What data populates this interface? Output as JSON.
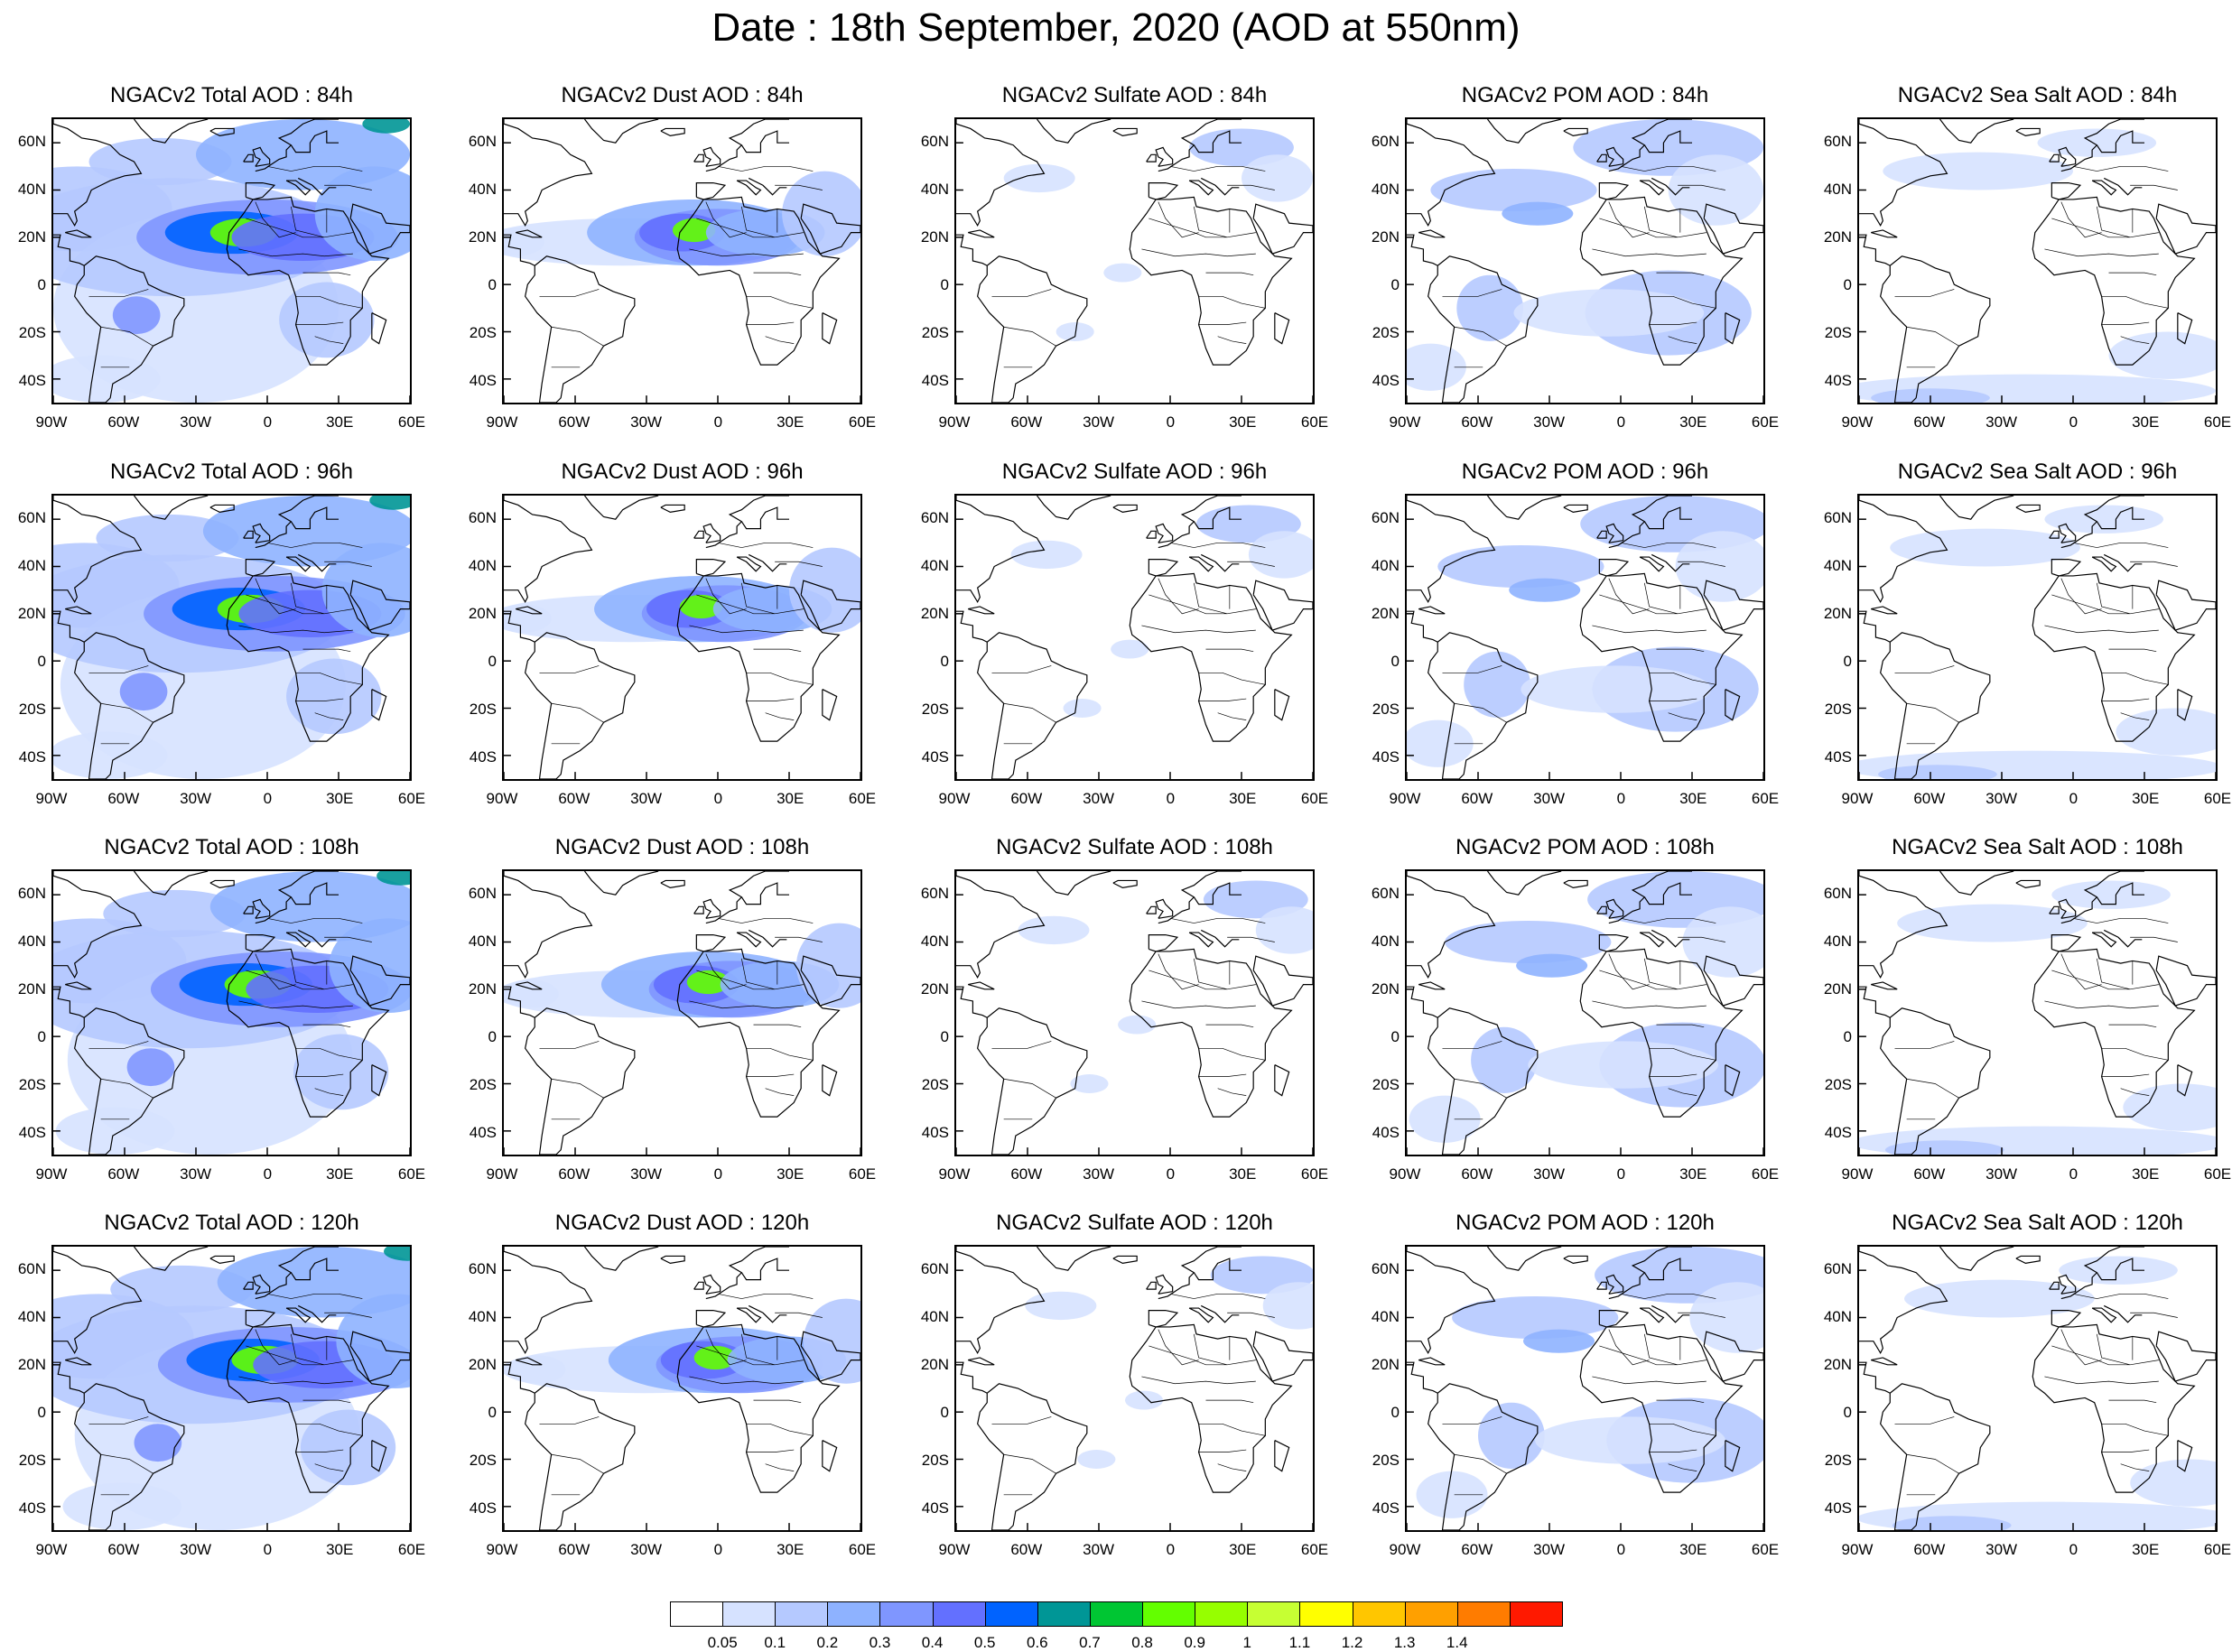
{
  "title": "Date : 18th September, 2020 (AOD at 550nm)",
  "panels": [
    [
      {
        "title": "NGACv2 Total AOD : 84h",
        "species": "total"
      },
      {
        "title": "NGACv2 Dust AOD : 84h",
        "species": "dust"
      },
      {
        "title": "NGACv2 Sulfate AOD : 84h",
        "species": "sulfate"
      },
      {
        "title": "NGACv2 POM AOD : 84h",
        "species": "pom"
      },
      {
        "title": "NGACv2 Sea Salt AOD : 84h",
        "species": "seasalt"
      }
    ],
    [
      {
        "title": "NGACv2 Total AOD : 96h",
        "species": "total"
      },
      {
        "title": "NGACv2 Dust AOD : 96h",
        "species": "dust"
      },
      {
        "title": "NGACv2 Sulfate AOD : 96h",
        "species": "sulfate"
      },
      {
        "title": "NGACv2 POM AOD : 96h",
        "species": "pom"
      },
      {
        "title": "NGACv2 Sea Salt AOD : 96h",
        "species": "seasalt"
      }
    ],
    [
      {
        "title": "NGACv2 Total AOD : 108h",
        "species": "total"
      },
      {
        "title": "NGACv2 Dust AOD : 108h",
        "species": "dust"
      },
      {
        "title": "NGACv2 Sulfate AOD : 108h",
        "species": "sulfate"
      },
      {
        "title": "NGACv2 POM AOD : 108h",
        "species": "pom"
      },
      {
        "title": "NGACv2 Sea Salt AOD : 108h",
        "species": "seasalt"
      }
    ],
    [
      {
        "title": "NGACv2 Total AOD : 120h",
        "species": "total"
      },
      {
        "title": "NGACv2 Dust AOD : 120h",
        "species": "dust"
      },
      {
        "title": "NGACv2 Sulfate AOD : 120h",
        "species": "sulfate"
      },
      {
        "title": "NGACv2 POM AOD : 120h",
        "species": "pom"
      },
      {
        "title": "NGACv2 Sea Salt  AOD : 120h",
        "species": "seasalt"
      }
    ]
  ],
  "lat_labels": [
    "60N",
    "40N",
    "20N",
    "0",
    "20S",
    "40S"
  ],
  "lat_values": [
    60,
    40,
    20,
    0,
    -20,
    -40
  ],
  "lon_labels": [
    "90W",
    "60W",
    "30W",
    "0",
    "30E",
    "60E"
  ],
  "lon_values": [
    -90,
    -60,
    -30,
    0,
    30,
    60
  ],
  "map_extent": {
    "lon_min": -90,
    "lon_max": 60,
    "lat_min": -50,
    "lat_max": 70
  },
  "colorbar": {
    "labels": [
      "0.05",
      "0.1",
      "0.2",
      "0.3",
      "0.4",
      "0.5",
      "0.6",
      "0.7",
      "0.8",
      "0.9",
      "1",
      "1.1",
      "1.2",
      "1.3",
      "1.4"
    ],
    "colors": [
      "#ffffff",
      "#d6e2ff",
      "#b5c9ff",
      "#8eb2ff",
      "#7f96ff",
      "#6370ff",
      "#0063ff",
      "#009696",
      "#00c633",
      "#63ff00",
      "#96ff00",
      "#c6ff33",
      "#ffff00",
      "#ffc600",
      "#ffa000",
      "#ff7c00",
      "#ff1900"
    ]
  },
  "colors": {
    "land_outline": "#000000",
    "background": "#ffffff"
  }
}
